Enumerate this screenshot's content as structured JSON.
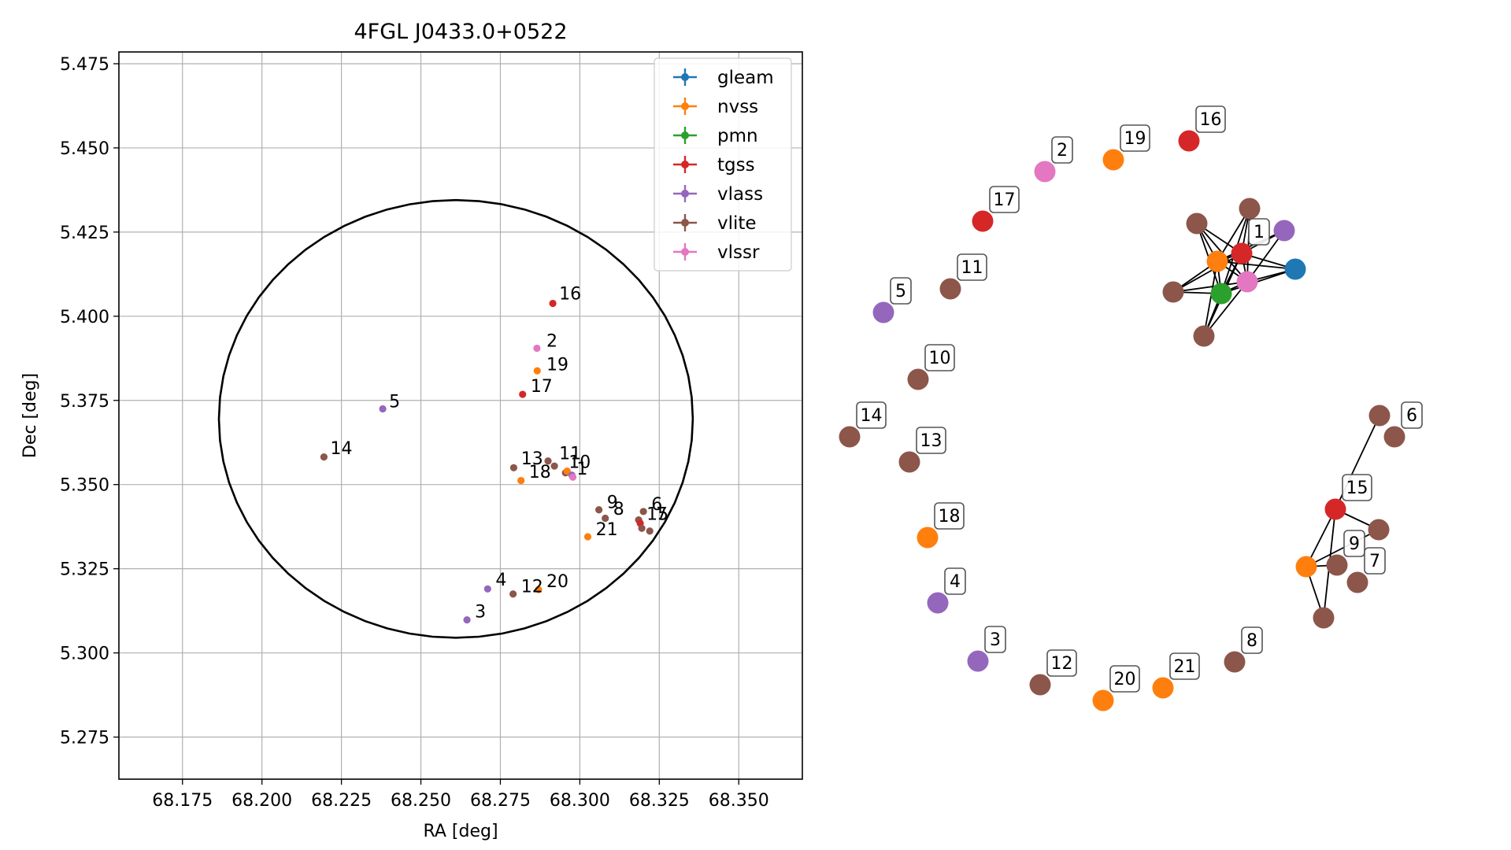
{
  "chart_data": [
    {
      "type": "scatter",
      "title": "4FGL J0433.0+0522",
      "xlabel": "RA [deg]",
      "ylabel": "Dec [deg]",
      "xlim": [
        68.155,
        68.37
      ],
      "ylim": [
        5.2625,
        5.4785
      ],
      "xticks": [
        68.175,
        68.2,
        68.225,
        68.25,
        68.275,
        68.3,
        68.325,
        68.35
      ],
      "xtick_labels": [
        "68.175",
        "68.200",
        "68.225",
        "68.250",
        "68.275",
        "68.300",
        "68.325",
        "68.350"
      ],
      "yticks": [
        5.275,
        5.3,
        5.325,
        5.35,
        5.375,
        5.4,
        5.425,
        5.45,
        5.475
      ],
      "ytick_labels": [
        "5.275",
        "5.300",
        "5.325",
        "5.350",
        "5.375",
        "5.400",
        "5.425",
        "5.450",
        "5.475"
      ],
      "grid": true,
      "legend_position": "top-right",
      "circle": {
        "center": [
          68.261,
          5.3695
        ],
        "radius": 0.065
      },
      "series": [
        {
          "name": "gleam",
          "color": "#1f77b4"
        },
        {
          "name": "nvss",
          "color": "#ff7f0e"
        },
        {
          "name": "pmn",
          "color": "#2ca02c"
        },
        {
          "name": "tgss",
          "color": "#d62728"
        },
        {
          "name": "vlass",
          "color": "#9467bd"
        },
        {
          "name": "vlite",
          "color": "#8c564b"
        },
        {
          "name": "vlssr",
          "color": "#e377c2"
        }
      ],
      "points": [
        {
          "survey": "vlssr",
          "x": 68.2865,
          "y": 5.3905,
          "label": ""
        },
        {
          "survey": "nvss",
          "x": 68.2866,
          "y": 5.3838,
          "label": ""
        },
        {
          "survey": "tgss",
          "x": 68.2915,
          "y": 5.4038,
          "label": ""
        },
        {
          "survey": "tgss",
          "x": 68.282,
          "y": 5.3768,
          "label": ""
        },
        {
          "survey": "vlass",
          "x": 68.238,
          "y": 5.3725,
          "label": ""
        },
        {
          "survey": "vlite",
          "x": 68.2195,
          "y": 5.3582,
          "label": ""
        },
        {
          "survey": "vlite",
          "x": 68.2792,
          "y": 5.355,
          "label": ""
        },
        {
          "survey": "nvss",
          "x": 68.2815,
          "y": 5.3512,
          "label": ""
        },
        {
          "survey": "vlite",
          "x": 68.29,
          "y": 5.357,
          "label": ""
        },
        {
          "survey": "vlite",
          "x": 68.292,
          "y": 5.3555,
          "label": ""
        },
        {
          "survey": "vlite",
          "x": 68.2955,
          "y": 5.3535,
          "label": ""
        },
        {
          "survey": "nvss",
          "x": 68.296,
          "y": 5.354,
          "label": ""
        },
        {
          "survey": "vlass",
          "x": 68.2975,
          "y": 5.3528,
          "label": ""
        },
        {
          "survey": "vlssr",
          "x": 68.2978,
          "y": 5.3522,
          "label": ""
        },
        {
          "survey": "vlite",
          "x": 68.306,
          "y": 5.3425,
          "label": ""
        },
        {
          "survey": "vlite",
          "x": 68.308,
          "y": 5.34,
          "label": ""
        },
        {
          "survey": "nvss",
          "x": 68.3025,
          "y": 5.3345,
          "label": ""
        },
        {
          "survey": "vlite",
          "x": 68.32,
          "y": 5.342,
          "label": ""
        },
        {
          "survey": "vlite",
          "x": 68.3185,
          "y": 5.3395,
          "label": ""
        },
        {
          "survey": "tgss",
          "x": 68.319,
          "y": 5.3385,
          "label": ""
        },
        {
          "survey": "vlite",
          "x": 68.3195,
          "y": 5.337,
          "label": ""
        },
        {
          "survey": "vlite",
          "x": 68.322,
          "y": 5.3362,
          "label": ""
        },
        {
          "survey": "vlass",
          "x": 68.271,
          "y": 5.319,
          "label": ""
        },
        {
          "survey": "vlite",
          "x": 68.279,
          "y": 5.3175,
          "label": ""
        },
        {
          "survey": "nvss",
          "x": 68.287,
          "y": 5.3188,
          "label": ""
        },
        {
          "survey": "vlass",
          "x": 68.2645,
          "y": 5.3098,
          "label": ""
        }
      ],
      "annotations": [
        {
          "text": "16",
          "x": 68.2935,
          "y": 5.405
        },
        {
          "text": "2",
          "x": 68.2895,
          "y": 5.391
        },
        {
          "text": "19",
          "x": 68.2895,
          "y": 5.384
        },
        {
          "text": "17",
          "x": 68.2845,
          "y": 5.3775
        },
        {
          "text": "5",
          "x": 68.24,
          "y": 5.373
        },
        {
          "text": "14",
          "x": 68.2215,
          "y": 5.359
        },
        {
          "text": "13",
          "x": 68.2815,
          "y": 5.356
        },
        {
          "text": "18",
          "x": 68.284,
          "y": 5.352
        },
        {
          "text": "11",
          "x": 68.2935,
          "y": 5.3575
        },
        {
          "text": "10",
          "x": 68.2965,
          "y": 5.355
        },
        {
          "text": "1",
          "x": 68.299,
          "y": 5.353
        },
        {
          "text": "9",
          "x": 68.3085,
          "y": 5.343
        },
        {
          "text": "8",
          "x": 68.3105,
          "y": 5.341
        },
        {
          "text": "6",
          "x": 68.3225,
          "y": 5.3425
        },
        {
          "text": "15",
          "x": 68.321,
          "y": 5.3395
        },
        {
          "text": "7",
          "x": 68.324,
          "y": 5.3395
        },
        {
          "text": "21",
          "x": 68.305,
          "y": 5.335
        },
        {
          "text": "4",
          "x": 68.2735,
          "y": 5.32
        },
        {
          "text": "12",
          "x": 68.2815,
          "y": 5.318
        },
        {
          "text": "20",
          "x": 68.2895,
          "y": 5.3195
        },
        {
          "text": "3",
          "x": 68.267,
          "y": 5.3105
        }
      ]
    },
    {
      "type": "network",
      "nodes": [
        {
          "id": "c1",
          "label": "",
          "survey": "gleam",
          "color": "#1f77b4"
        },
        {
          "id": "c2",
          "label": "",
          "survey": "nvss",
          "color": "#ff7f0e"
        },
        {
          "id": "c3",
          "label": "",
          "survey": "pmn",
          "color": "#2ca02c"
        },
        {
          "id": "c4",
          "label": "1",
          "survey": "tgss",
          "color": "#d62728"
        },
        {
          "id": "c5",
          "label": "",
          "survey": "vlass",
          "color": "#9467bd"
        },
        {
          "id": "c6",
          "label": "",
          "survey": "vlite",
          "color": "#8c564b"
        },
        {
          "id": "c7",
          "label": "",
          "survey": "vlite",
          "color": "#8c564b"
        },
        {
          "id": "c8",
          "label": "",
          "survey": "vlite",
          "color": "#8c564b"
        },
        {
          "id": "c9",
          "label": "",
          "survey": "vlite",
          "color": "#8c564b"
        },
        {
          "id": "c10",
          "label": "",
          "survey": "vlssr",
          "color": "#e377c2"
        },
        {
          "id": "n16",
          "label": "16",
          "survey": "tgss",
          "color": "#d62728"
        },
        {
          "id": "n19",
          "label": "19",
          "survey": "nvss",
          "color": "#ff7f0e"
        },
        {
          "id": "n2",
          "label": "2",
          "survey": "vlssr",
          "color": "#e377c2"
        },
        {
          "id": "n17",
          "label": "17",
          "survey": "tgss",
          "color": "#d62728"
        },
        {
          "id": "n11",
          "label": "11",
          "survey": "vlite",
          "color": "#8c564b"
        },
        {
          "id": "n5",
          "label": "5",
          "survey": "vlass",
          "color": "#9467bd"
        },
        {
          "id": "n10",
          "label": "10",
          "survey": "vlite",
          "color": "#8c564b"
        },
        {
          "id": "n14",
          "label": "14",
          "survey": "vlite",
          "color": "#8c564b"
        },
        {
          "id": "n13",
          "label": "13",
          "survey": "vlite",
          "color": "#8c564b"
        },
        {
          "id": "n18",
          "label": "18",
          "survey": "nvss",
          "color": "#ff7f0e"
        },
        {
          "id": "n4",
          "label": "4",
          "survey": "vlass",
          "color": "#9467bd"
        },
        {
          "id": "n3",
          "label": "3",
          "survey": "vlass",
          "color": "#9467bd"
        },
        {
          "id": "n12",
          "label": "12",
          "survey": "vlite",
          "color": "#8c564b"
        },
        {
          "id": "n20",
          "label": "20",
          "survey": "nvss",
          "color": "#ff7f0e"
        },
        {
          "id": "n21",
          "label": "21",
          "survey": "nvss",
          "color": "#ff7f0e"
        },
        {
          "id": "n8",
          "label": "8",
          "survey": "vlite",
          "color": "#8c564b"
        },
        {
          "id": "g6a",
          "label": "",
          "survey": "vlite",
          "color": "#8c564b"
        },
        {
          "id": "g6b",
          "label": "6",
          "survey": "vlite",
          "color": "#8c564b"
        },
        {
          "id": "g15",
          "label": "15",
          "survey": "tgss",
          "color": "#d62728"
        },
        {
          "id": "g15b",
          "label": "",
          "survey": "vlite",
          "color": "#8c564b"
        },
        {
          "id": "g9n",
          "label": "",
          "survey": "nvss",
          "color": "#ff7f0e"
        },
        {
          "id": "g9",
          "label": "9",
          "survey": "vlite",
          "color": "#8c564b"
        },
        {
          "id": "g7",
          "label": "7",
          "survey": "vlite",
          "color": "#8c564b"
        },
        {
          "id": "gb",
          "label": "",
          "survey": "vlite",
          "color": "#8c564b"
        }
      ],
      "edges": [
        [
          "c1",
          "c2"
        ],
        [
          "c1",
          "c3"
        ],
        [
          "c1",
          "c4"
        ],
        [
          "c1",
          "c10"
        ],
        [
          "c2",
          "c3"
        ],
        [
          "c2",
          "c4"
        ],
        [
          "c2",
          "c5"
        ],
        [
          "c2",
          "c6"
        ],
        [
          "c2",
          "c7"
        ],
        [
          "c2",
          "c8"
        ],
        [
          "c2",
          "c9"
        ],
        [
          "c2",
          "c10"
        ],
        [
          "c3",
          "c4"
        ],
        [
          "c3",
          "c6"
        ],
        [
          "c3",
          "c7"
        ],
        [
          "c3",
          "c8"
        ],
        [
          "c3",
          "c9"
        ],
        [
          "c3",
          "c10"
        ],
        [
          "c4",
          "c5"
        ],
        [
          "c4",
          "c6"
        ],
        [
          "c4",
          "c7"
        ],
        [
          "c4",
          "c8"
        ],
        [
          "c4",
          "c9"
        ],
        [
          "c4",
          "c10"
        ],
        [
          "c6",
          "c10"
        ],
        [
          "c7",
          "c10"
        ],
        [
          "c8",
          "c10"
        ],
        [
          "c9",
          "c10"
        ],
        [
          "c5",
          "c10"
        ],
        [
          "g6a",
          "g15"
        ],
        [
          "g15",
          "g15b"
        ],
        [
          "g15",
          "g9n"
        ],
        [
          "g15",
          "gb"
        ],
        [
          "g9n",
          "g9"
        ],
        [
          "g9n",
          "gb"
        ],
        [
          "g9n",
          "g15b"
        ]
      ]
    }
  ]
}
